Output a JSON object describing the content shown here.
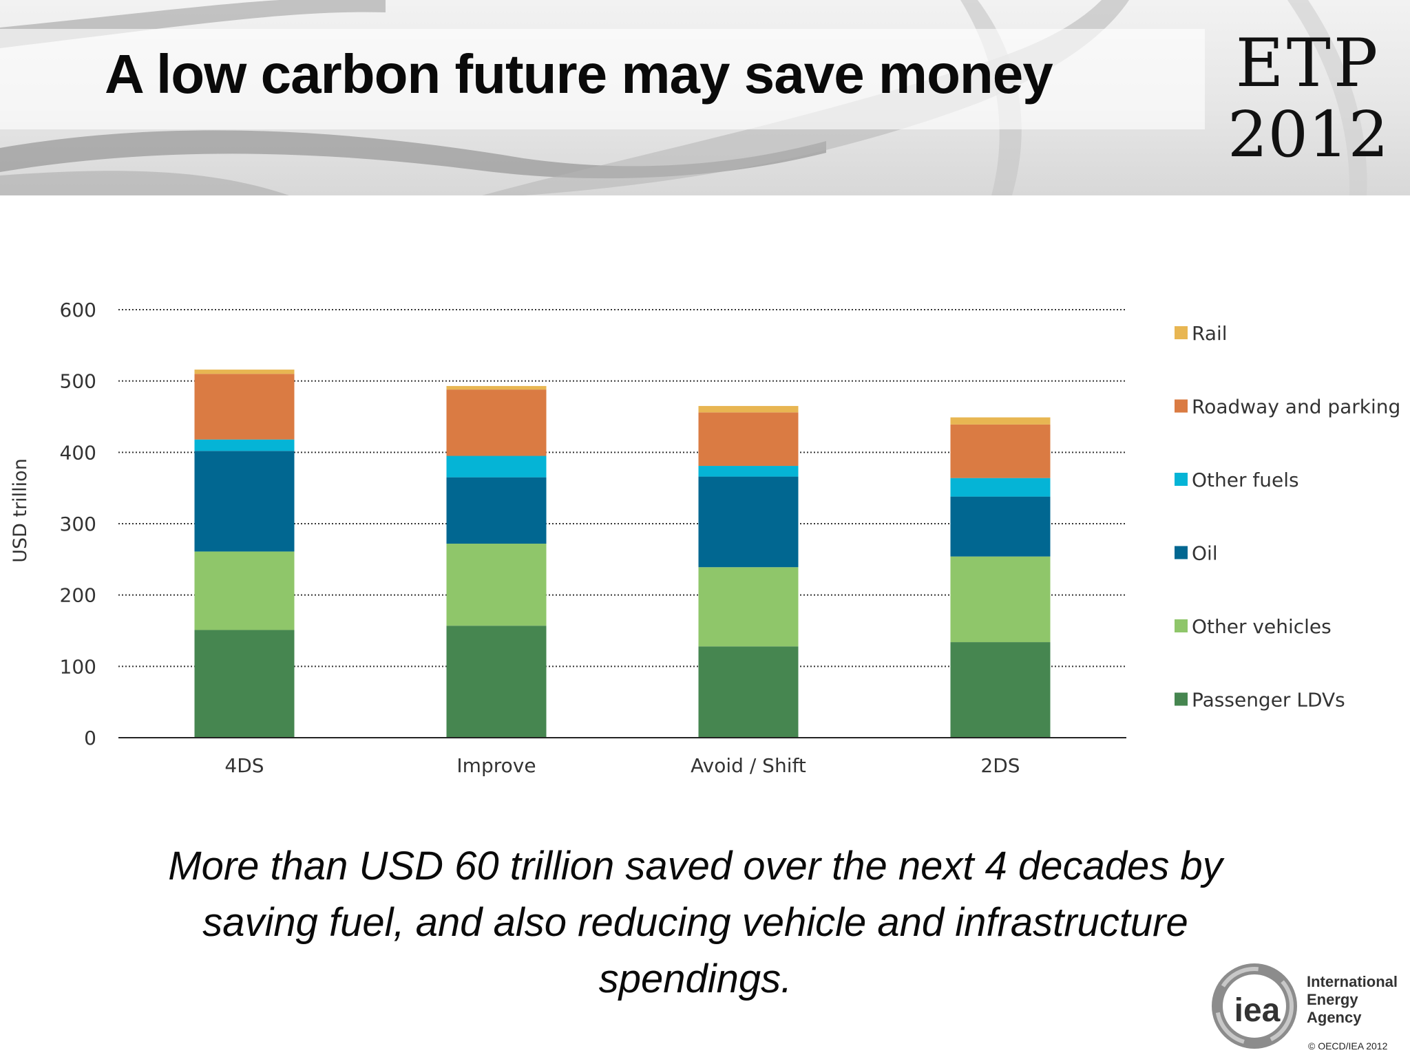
{
  "header": {
    "title": "A low carbon future may save money",
    "report_line1": "ETP",
    "report_line2": "2012"
  },
  "caption": {
    "line1": "More than USD 60 trillion saved over the next 4 decades by",
    "line2": "saving fuel, and also reducing vehicle and infrastructure",
    "line3": "spendings."
  },
  "footer": {
    "iea_mark": "iea",
    "org_line1": "International",
    "org_line2": "Energy Agency",
    "copyright": "© OECD/IEA 2012"
  },
  "chart_data": {
    "type": "bar",
    "stacked": true,
    "ylabel": "USD trillion",
    "ylim": [
      0,
      600
    ],
    "yticks": [
      0,
      100,
      200,
      300,
      400,
      500,
      600
    ],
    "grid": true,
    "legend_position": "right",
    "categories": [
      "4DS",
      "Improve",
      "Avoid / Shift",
      "2DS"
    ],
    "series": [
      {
        "name": "Passenger LDVs",
        "color": "#468650",
        "values": [
          151,
          157,
          128,
          134
        ]
      },
      {
        "name": "Other vehicles",
        "color": "#8fc66a",
        "values": [
          110,
          115,
          111,
          120
        ]
      },
      {
        "name": "Oil",
        "color": "#016791",
        "values": [
          141,
          93,
          127,
          84
        ]
      },
      {
        "name": "Other fuels",
        "color": "#05b4d6",
        "values": [
          16,
          30,
          15,
          26
        ]
      },
      {
        "name": "Roadway and parking",
        "color": "#da7b43",
        "values": [
          92,
          93,
          75,
          75
        ]
      },
      {
        "name": "Rail",
        "color": "#e8b652",
        "values": [
          6,
          5,
          9,
          10
        ]
      }
    ]
  }
}
